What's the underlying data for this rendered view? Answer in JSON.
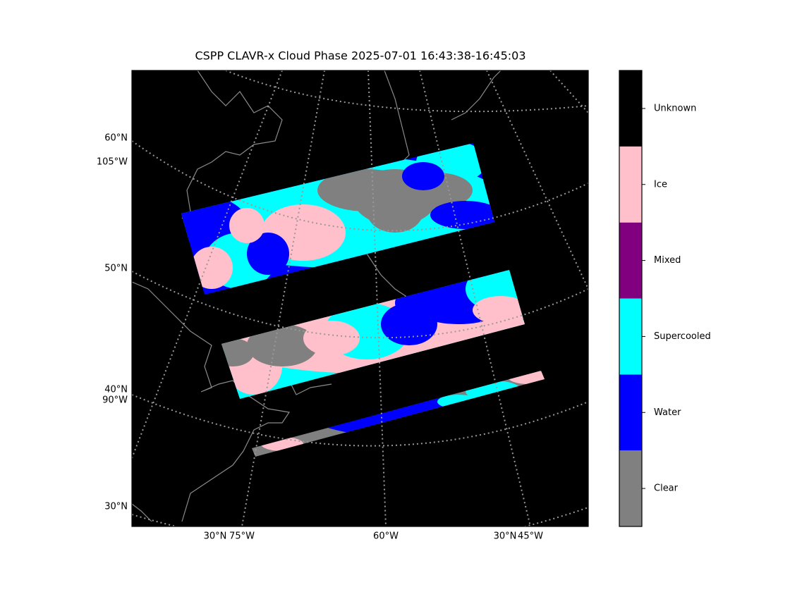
{
  "title": "CSPP CLAVR-x Cloud Phase 2025-07-01 16:43:38-16:45:03",
  "map": {
    "left_labels": [
      "60°N",
      "105°W",
      "50°N",
      "40°N",
      "90°W",
      "30°N"
    ],
    "bottom_labels": [
      "30°N",
      "75°W",
      "60°W",
      "30°N",
      "45°W"
    ]
  },
  "colorbar": {
    "classes": [
      {
        "label": "Clear",
        "color": "#808080"
      },
      {
        "label": "Water",
        "color": "#0000ff"
      },
      {
        "label": "Supercooled",
        "color": "#00ffff"
      },
      {
        "label": "Mixed",
        "color": "#800080"
      },
      {
        "label": "Ice",
        "color": "#ffc0cb"
      },
      {
        "label": "Unknown",
        "color": "#000000"
      }
    ]
  }
}
